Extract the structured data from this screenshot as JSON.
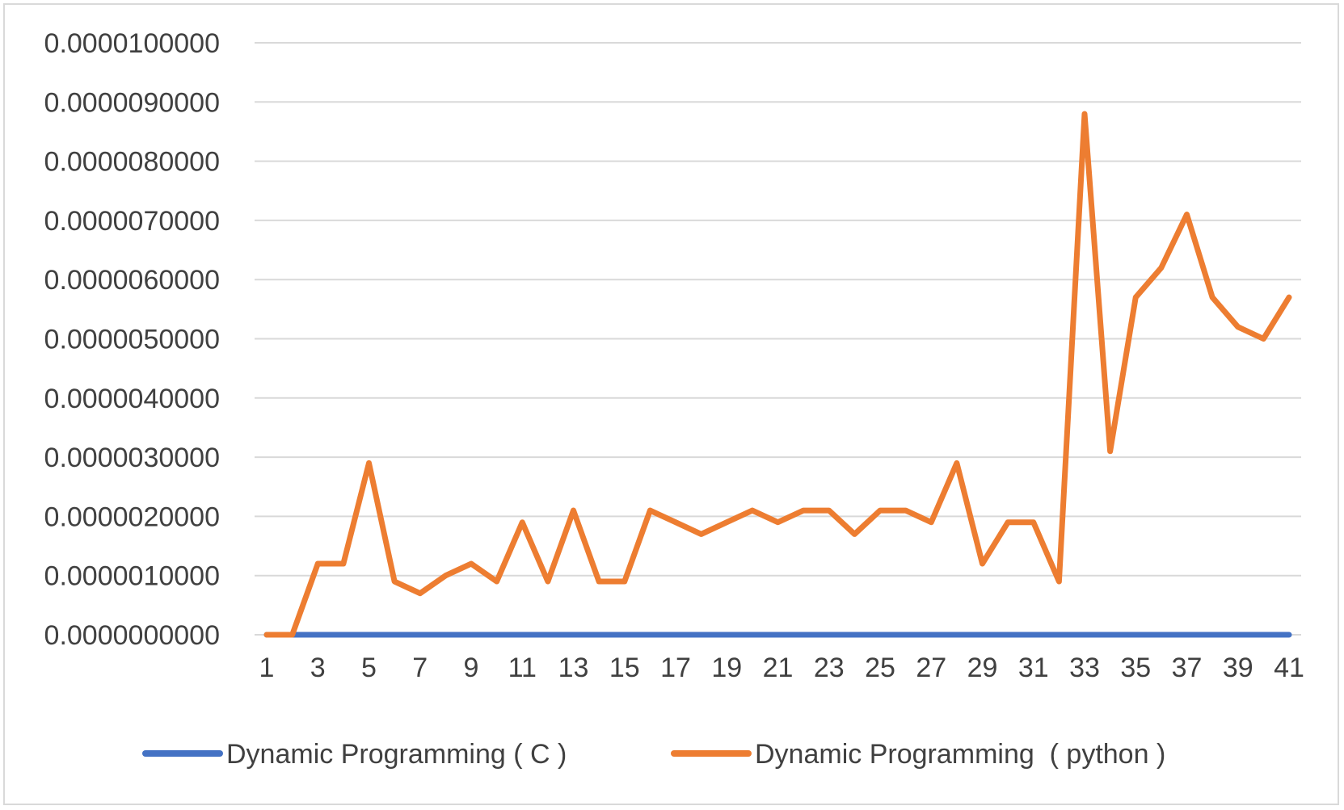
{
  "chart_data": {
    "type": "line",
    "title": "",
    "xlabel": "",
    "ylabel": "",
    "x": [
      1,
      2,
      3,
      4,
      5,
      6,
      7,
      8,
      9,
      10,
      11,
      12,
      13,
      14,
      15,
      16,
      17,
      18,
      19,
      20,
      21,
      22,
      23,
      24,
      25,
      26,
      27,
      28,
      29,
      30,
      31,
      32,
      33,
      34,
      35,
      36,
      37,
      38,
      39,
      40,
      41
    ],
    "x_tick_labels": [
      "1",
      "3",
      "5",
      "7",
      "9",
      "11",
      "13",
      "15",
      "17",
      "19",
      "21",
      "23",
      "25",
      "27",
      "29",
      "31",
      "33",
      "35",
      "37",
      "39",
      "41"
    ],
    "ylim": [
      0,
      1e-05
    ],
    "y_tick_labels": [
      "0.0000000000",
      "0.0000010000",
      "0.0000020000",
      "0.0000030000",
      "0.0000040000",
      "0.0000050000",
      "0.0000060000",
      "0.0000070000",
      "0.0000080000",
      "0.0000090000",
      "0.0000100000"
    ],
    "grid": true,
    "legend_position": "bottom",
    "series": [
      {
        "name": "Dynamic Programming ( C )",
        "color": "#4472c4",
        "values": [
          0,
          0,
          0,
          0,
          0,
          0,
          0,
          0,
          0,
          0,
          0,
          0,
          0,
          0,
          0,
          0,
          0,
          0,
          0,
          0,
          0,
          0,
          0,
          0,
          0,
          0,
          0,
          0,
          0,
          0,
          0,
          0,
          0,
          0,
          0,
          0,
          0,
          0,
          0,
          0,
          0
        ]
      },
      {
        "name": "Dynamic Programming  ( python )",
        "color": "#ed7d31",
        "values": [
          0.0,
          0.0,
          1.2e-06,
          1.2e-06,
          2.9e-06,
          9e-07,
          7e-07,
          1e-06,
          1.2e-06,
          9e-07,
          1.9e-06,
          9e-07,
          2.1e-06,
          9e-07,
          9e-07,
          2.1e-06,
          1.9e-06,
          1.7e-06,
          1.9e-06,
          2.1e-06,
          1.9e-06,
          2.1e-06,
          2.1e-06,
          1.7e-06,
          2.1e-06,
          2.1e-06,
          1.9e-06,
          2.9e-06,
          1.2e-06,
          1.9e-06,
          1.9e-06,
          9e-07,
          8.8e-06,
          3.1e-06,
          5.7e-06,
          6.2e-06,
          7.1e-06,
          5.7e-06,
          5.2e-06,
          5e-06,
          5.7e-06
        ]
      }
    ]
  }
}
